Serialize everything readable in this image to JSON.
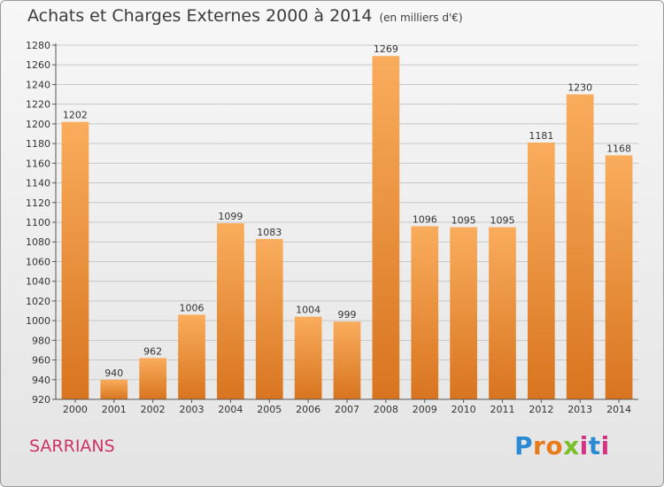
{
  "title": "Achats et Charges Externes 2000 à 2014",
  "subtitle": "(en milliers d'€)",
  "city": "SARRIANS",
  "logo": {
    "text": "Proxiti",
    "letters": [
      "P",
      "r",
      "o",
      "x",
      "i",
      "t",
      "i"
    ],
    "colors": [
      "#2a8ad4",
      "#e87a1a",
      "#e87a1a",
      "#7bbf2a",
      "#d63384",
      "#2a8ad4",
      "#d63384"
    ]
  },
  "colors": {
    "bar_light": "#f9ad5c",
    "bar_dark": "#d8741f",
    "city": "#cc3366",
    "grid": "#c8c8c8"
  },
  "chart_data": {
    "type": "bar",
    "categories": [
      "2000",
      "2001",
      "2002",
      "2003",
      "2004",
      "2005",
      "2006",
      "2007",
      "2008",
      "2009",
      "2010",
      "2011",
      "2012",
      "2013",
      "2014"
    ],
    "values": [
      1202,
      940,
      962,
      1006,
      1099,
      1083,
      1004,
      999,
      1269,
      1096,
      1095,
      1095,
      1181,
      1230,
      1168
    ],
    "ylim": [
      920,
      1280
    ],
    "yticks": [
      920,
      940,
      960,
      980,
      1000,
      1020,
      1040,
      1060,
      1080,
      1100,
      1120,
      1140,
      1160,
      1180,
      1200,
      1220,
      1240,
      1260,
      1280
    ],
    "grid": true
  }
}
